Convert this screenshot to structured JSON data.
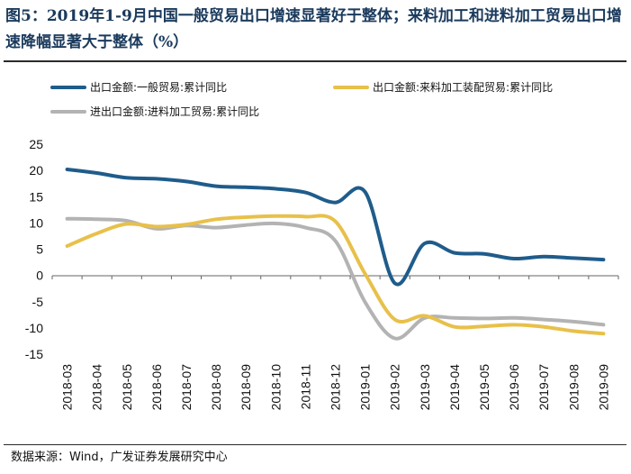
{
  "title": "图5：2019年1-9月中国一般贸易出口增速显著好于整体；来料加工和进料加工贸易出口增速降幅显著大于整体（%）",
  "source": "数据来源：Wind，广发证券发展研究中心",
  "chart_data": {
    "type": "line",
    "title": "图5：2019年1-9月中国一般贸易出口增速显著好于整体；来料加工和进料加工贸易出口增速降幅显著大于整体（%）",
    "x": [
      "2018-03",
      "2018-04",
      "2018-05",
      "2018-06",
      "2018-07",
      "2018-08",
      "2018-09",
      "2018-10",
      "2018-11",
      "2018-12",
      "2019-01",
      "2019-02",
      "2019-03",
      "2019-04",
      "2019-05",
      "2019-06",
      "2019-07",
      "2019-08",
      "2019-09"
    ],
    "ylim": [
      -15,
      25
    ],
    "yticks": [
      25,
      20,
      15,
      10,
      5,
      0,
      -5,
      -10,
      -15
    ],
    "grid": false,
    "legend_position": "top",
    "series": [
      {
        "name": "出口金额:一般贸易:累计同比",
        "color": "#1f5c8b",
        "values": [
          20.2,
          19.5,
          18.6,
          18.4,
          17.9,
          17.0,
          16.8,
          16.5,
          15.8,
          13.9,
          15.9,
          -1.5,
          6.1,
          4.3,
          4.1,
          3.2,
          3.6,
          3.3,
          3.0
        ]
      },
      {
        "name": "出口金额:来料加工装配贸易:累计同比",
        "color": "#e8c04a",
        "values": [
          5.6,
          8.0,
          9.8,
          9.3,
          9.7,
          10.7,
          11.1,
          11.3,
          11.2,
          10.3,
          0.3,
          -8.4,
          -7.7,
          -9.8,
          -9.7,
          -9.4,
          -9.8,
          -10.6,
          -11.1
        ]
      },
      {
        "name": "进出口金额:进料加工贸易:累计同比",
        "color": "#b3b3b3",
        "values": [
          10.8,
          10.7,
          10.4,
          8.9,
          9.5,
          9.1,
          9.6,
          9.9,
          9.1,
          6.6,
          -5.1,
          -12.0,
          -8.1,
          -8.1,
          -8.2,
          -8.1,
          -8.4,
          -8.8,
          -9.4
        ]
      }
    ]
  }
}
